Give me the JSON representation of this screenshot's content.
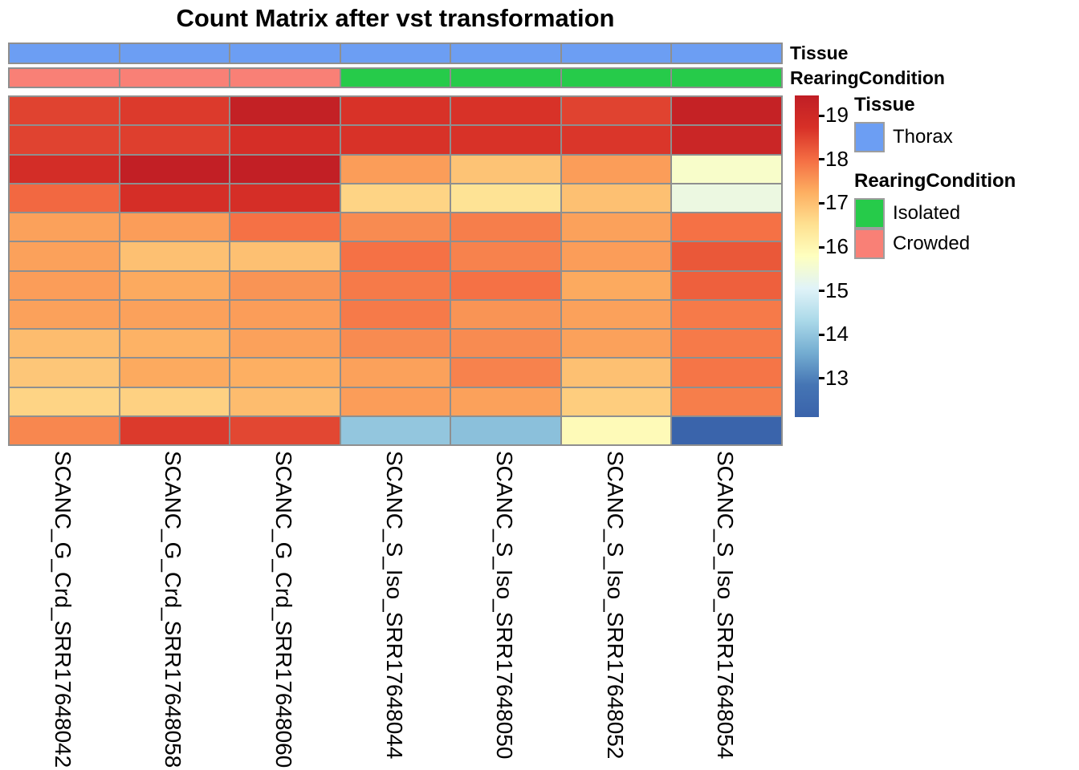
{
  "title": "Count Matrix after vst transformation",
  "annotation_colors": {
    "Thorax": "#6C9EF3",
    "Isolated": "#26CB4A",
    "Crowded": "#F98076"
  },
  "legend": {
    "annotation_bar_labels": {
      "tissue": "Tissue",
      "rearing": "RearingCondition"
    },
    "tissue_group": {
      "title": "Tissue",
      "items": [
        {
          "label": "Thorax",
          "color": "#6C9EF3"
        }
      ]
    },
    "rearing_group": {
      "title": "RearingCondition",
      "items": [
        {
          "label": "Isolated",
          "color": "#26CB4A"
        },
        {
          "label": "Crowded",
          "color": "#F98076"
        }
      ]
    }
  },
  "chart_data": {
    "type": "heatmap",
    "title": "Count Matrix after vst transformation",
    "columns": [
      "SCANC_G_Crd_SRR17648042",
      "SCANC_G_Crd_SRR17648058",
      "SCANC_G_Crd_SRR17648060",
      "SCANC_S_Iso_SRR17648044",
      "SCANC_S_Iso_SRR17648050",
      "SCANC_S_Iso_SRR17648052",
      "SCANC_S_Iso_SRR17648054"
    ],
    "n_rows": 12,
    "row_labels_shown": false,
    "values": [
      [
        18.5,
        18.6,
        19.35,
        18.7,
        18.7,
        18.5,
        19.3
      ],
      [
        18.5,
        18.55,
        18.8,
        18.7,
        18.7,
        18.65,
        19.15
      ],
      [
        18.85,
        19.4,
        19.4,
        17.45,
        16.95,
        17.45,
        15.65
      ],
      [
        18.05,
        18.8,
        18.8,
        16.7,
        16.45,
        17.0,
        15.35
      ],
      [
        17.4,
        17.45,
        17.95,
        17.65,
        17.8,
        17.4,
        17.95
      ],
      [
        17.4,
        17.0,
        17.0,
        17.95,
        17.75,
        17.45,
        18.25
      ],
      [
        17.45,
        17.3,
        17.55,
        17.85,
        17.95,
        17.3,
        18.15
      ],
      [
        17.4,
        17.4,
        17.45,
        17.85,
        17.55,
        17.4,
        17.85
      ],
      [
        17.05,
        17.2,
        17.4,
        17.65,
        17.65,
        17.4,
        17.85
      ],
      [
        16.9,
        17.3,
        17.25,
        17.4,
        17.75,
        17.0,
        17.9
      ],
      [
        16.7,
        16.75,
        17.05,
        17.45,
        17.4,
        16.8,
        17.8
      ],
      [
        17.7,
        18.6,
        18.45,
        14.0,
        13.9,
        15.9,
        12.15
      ]
    ],
    "column_annotations": {
      "Tissue": [
        "Thorax",
        "Thorax",
        "Thorax",
        "Thorax",
        "Thorax",
        "Thorax",
        "Thorax"
      ],
      "RearingCondition": [
        "Crowded",
        "Crowded",
        "Crowded",
        "Isolated",
        "Isolated",
        "Isolated",
        "Isolated"
      ]
    },
    "color_scale": {
      "min": 12.12,
      "max": 19.46,
      "ticks": [
        19,
        18,
        17,
        16,
        15,
        14,
        13
      ],
      "palette_low_to_high": [
        "#3A63AB",
        "#4575B4",
        "#74ADD1",
        "#ABD9E9",
        "#E0F3F8",
        "#FEFFBF",
        "#FEE090",
        "#FDAE61",
        "#F46D43",
        "#D73027",
        "#C01E25"
      ]
    },
    "cell_border_color": "#8F8F8F",
    "legend_position": "right",
    "grid": true
  }
}
